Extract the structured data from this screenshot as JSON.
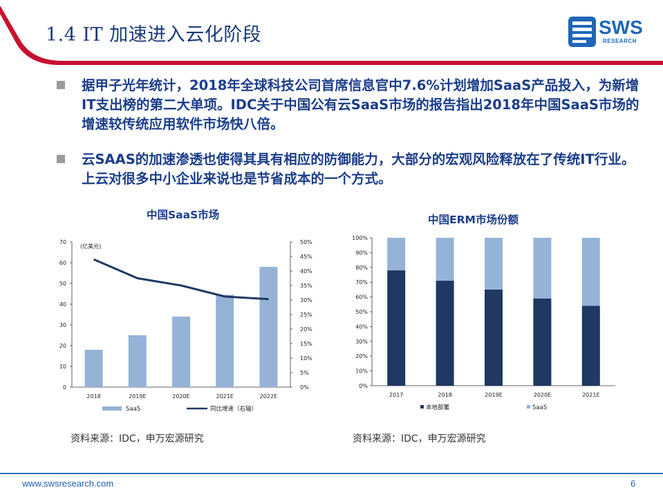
{
  "header": {
    "title": "1.4 IT 加速进入云化阶段",
    "logo_text": "SWS",
    "logo_subtext": "RESEARCH",
    "accent_color": "#c8102e"
  },
  "bullets": [
    "据甲子光年统计，2018年全球科技公司首席信息官中7.6%计划增加SaaS产品投入，为新增IT支出榜的第二大单项。IDC关于中国公有云SaaS市场的报告指出2018年中国SaaS市场的增速较传统应用软件市场快八倍。",
    "云SAAS的加速渗透也使得其具有相应的防御能力，大部分的宏观风险释放在了传统IT行业。上云对很多中小企业来说也是节省成本的一个方式。"
  ],
  "chart_data": [
    {
      "type": "bar",
      "title": "中国SaaS市场",
      "categories": [
        "2018",
        "2019E",
        "2020E",
        "2021E",
        "2022E"
      ],
      "ylabel_left": "(亿美元)",
      "ylim_left": [
        0,
        70
      ],
      "yticks_left": [
        "0",
        "10",
        "20",
        "30",
        "40",
        "50",
        "60",
        "70"
      ],
      "ylim_right": [
        0,
        0.5
      ],
      "yticks_right": [
        "0%",
        "5%",
        "10%",
        "15%",
        "20%",
        "25%",
        "30%",
        "35%",
        "40%",
        "45%",
        "50%"
      ],
      "series": [
        {
          "name": "SaaS",
          "kind": "bar",
          "axis": "left",
          "color": "#95b3d7",
          "values": [
            18,
            25,
            34,
            44.5,
            58
          ]
        },
        {
          "name": "同比增速（右轴）",
          "kind": "line",
          "axis": "right",
          "color": "#1f3864",
          "values": [
            0.44,
            0.375,
            0.35,
            0.312,
            0.303
          ]
        }
      ],
      "legend_position": "bottom"
    },
    {
      "type": "bar",
      "stacked": true,
      "title": "中国ERM市场份额",
      "categories": [
        "2017",
        "2018",
        "2019E",
        "2020E",
        "2021E"
      ],
      "ylim": [
        0,
        1
      ],
      "yticks": [
        "0%",
        "10%",
        "20%",
        "30%",
        "40%",
        "50%",
        "60%",
        "70%",
        "80%",
        "90%",
        "100%"
      ],
      "series": [
        {
          "name": "本地部署",
          "color": "#1f3864",
          "values": [
            0.78,
            0.71,
            0.65,
            0.59,
            0.54
          ]
        },
        {
          "name": "SaaS",
          "color": "#95b3d7",
          "values": [
            0.22,
            0.29,
            0.35,
            0.41,
            0.46
          ]
        }
      ],
      "legend_position": "bottom"
    }
  ],
  "sources": [
    "资料来源：IDC，申万宏源研究",
    "资料来源：IDC，申万宏源研究"
  ],
  "footer": {
    "url": "www.swsresearch.com",
    "page": "6"
  }
}
